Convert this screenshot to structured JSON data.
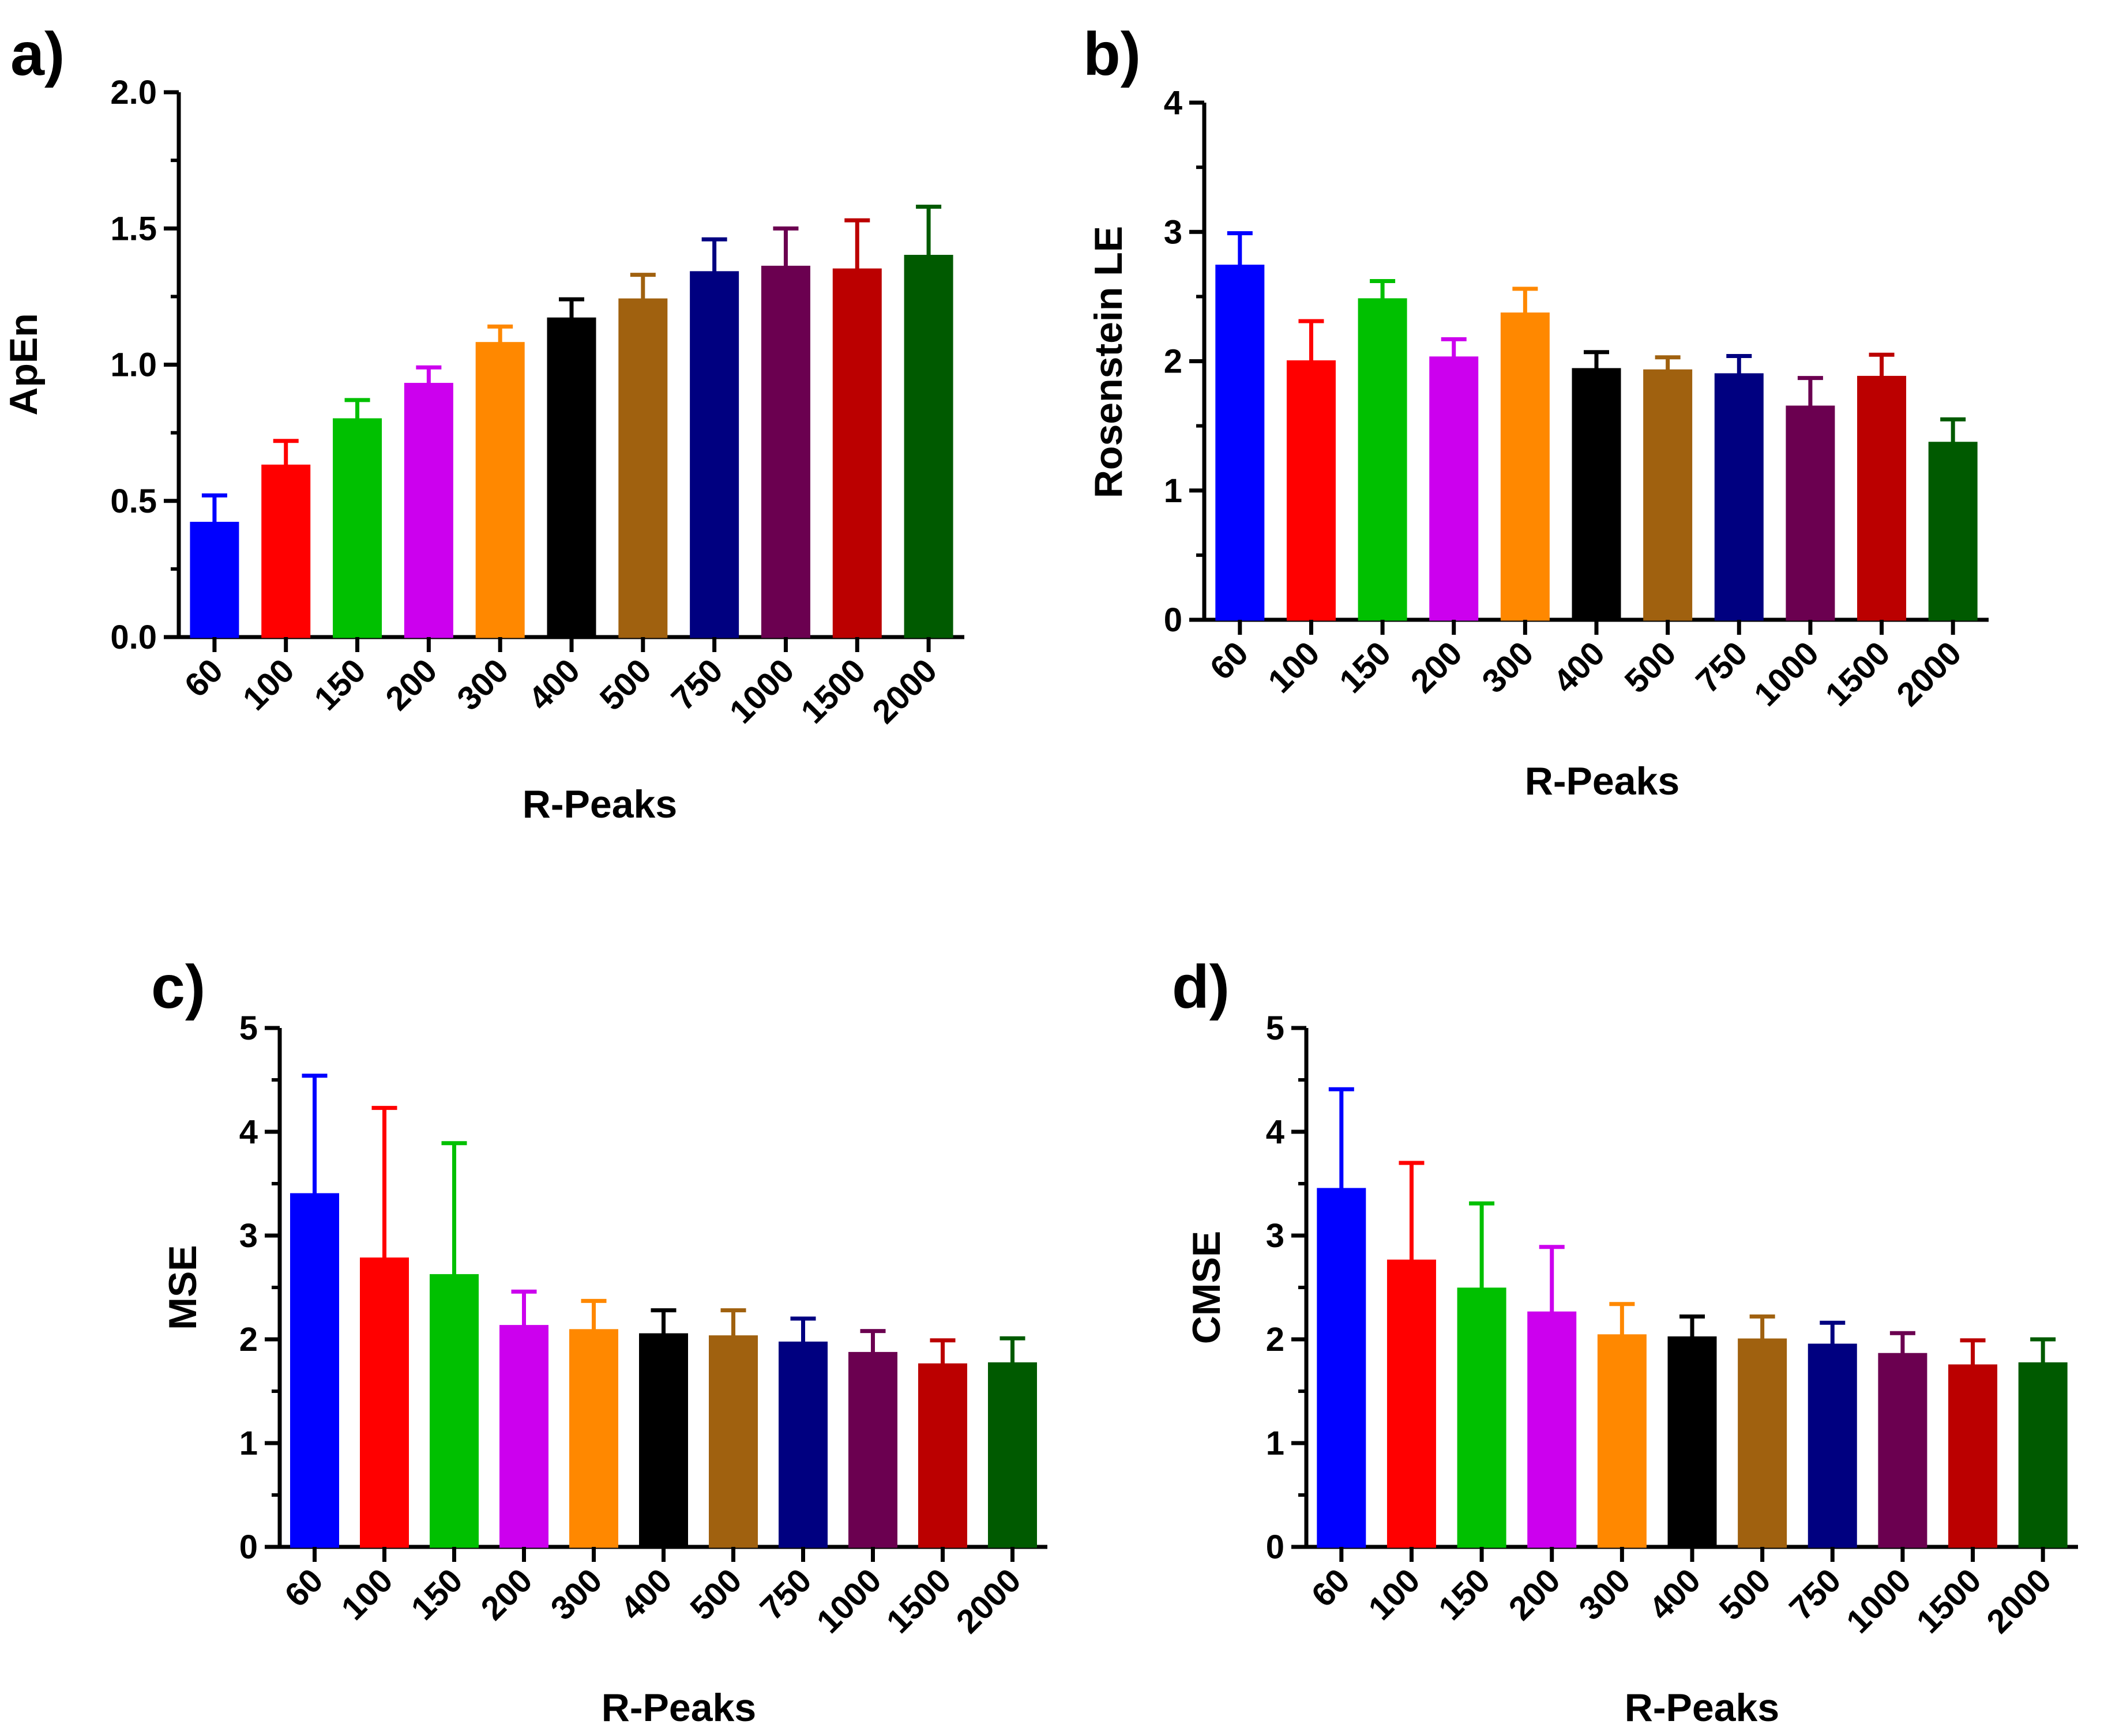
{
  "colors": [
    "#0000ff",
    "#ff0000",
    "#00c000",
    "#cc00ee",
    "#ff8800",
    "#000000",
    "#a0610f",
    "#000080",
    "#6b0050",
    "#bb0000",
    "#005a00"
  ],
  "chart_data": [
    {
      "type": "bar",
      "panel": "a)",
      "categories": [
        "60",
        "100",
        "150",
        "200",
        "300",
        "400",
        "500",
        "750",
        "1000",
        "1500",
        "2000"
      ],
      "values": [
        0.42,
        0.63,
        0.8,
        0.93,
        1.08,
        1.17,
        1.24,
        1.34,
        1.36,
        1.35,
        1.4
      ],
      "errors": [
        0.1,
        0.09,
        0.07,
        0.06,
        0.06,
        0.07,
        0.09,
        0.12,
        0.14,
        0.18,
        0.18
      ],
      "xlabel": "R-Peaks",
      "ylabel": "ApEn",
      "ylim": [
        0,
        2.0
      ],
      "yticks": [
        "0.0",
        "0.5",
        "1.0",
        "1.5",
        "2.0"
      ],
      "grid": false
    },
    {
      "type": "bar",
      "panel": "b)",
      "categories": [
        "60",
        "100",
        "150",
        "200",
        "300",
        "400",
        "500",
        "750",
        "1000",
        "1500",
        "2000"
      ],
      "values": [
        2.74,
        2.0,
        2.48,
        2.03,
        2.37,
        1.94,
        1.93,
        1.9,
        1.65,
        1.88,
        1.37
      ],
      "errors": [
        0.25,
        0.31,
        0.14,
        0.14,
        0.19,
        0.13,
        0.1,
        0.14,
        0.22,
        0.17,
        0.18
      ],
      "xlabel": "R-Peaks",
      "ylabel": "Rosenstein LE",
      "ylim": [
        0,
        4
      ],
      "yticks": [
        "0",
        "1",
        "2",
        "3",
        "4"
      ],
      "grid": false
    },
    {
      "type": "bar",
      "panel": "c)",
      "categories": [
        "60",
        "100",
        "150",
        "200",
        "300",
        "400",
        "500",
        "750",
        "1000",
        "1500",
        "2000"
      ],
      "values": [
        3.4,
        2.78,
        2.62,
        2.13,
        2.09,
        2.05,
        2.03,
        1.97,
        1.87,
        1.76,
        1.77
      ],
      "errors": [
        1.14,
        1.45,
        1.27,
        0.33,
        0.28,
        0.23,
        0.25,
        0.23,
        0.21,
        0.23,
        0.24
      ],
      "xlabel": "R-Peaks",
      "ylabel": "MSE",
      "ylim": [
        0,
        5
      ],
      "yticks": [
        "0",
        "1",
        "2",
        "3",
        "4",
        "5"
      ],
      "grid": false
    },
    {
      "type": "bar",
      "panel": "d)",
      "categories": [
        "60",
        "100",
        "150",
        "200",
        "300",
        "400",
        "500",
        "750",
        "1000",
        "1500",
        "2000"
      ],
      "values": [
        3.45,
        2.76,
        2.49,
        2.26,
        2.04,
        2.02,
        2.0,
        1.95,
        1.86,
        1.75,
        1.77
      ],
      "errors": [
        0.96,
        0.94,
        0.82,
        0.63,
        0.3,
        0.2,
        0.22,
        0.21,
        0.2,
        0.24,
        0.23
      ],
      "xlabel": "R-Peaks",
      "ylabel": "CMSE",
      "ylim": [
        0,
        5
      ],
      "yticks": [
        "0",
        "1",
        "2",
        "3",
        "4",
        "5"
      ],
      "grid": false
    }
  ]
}
